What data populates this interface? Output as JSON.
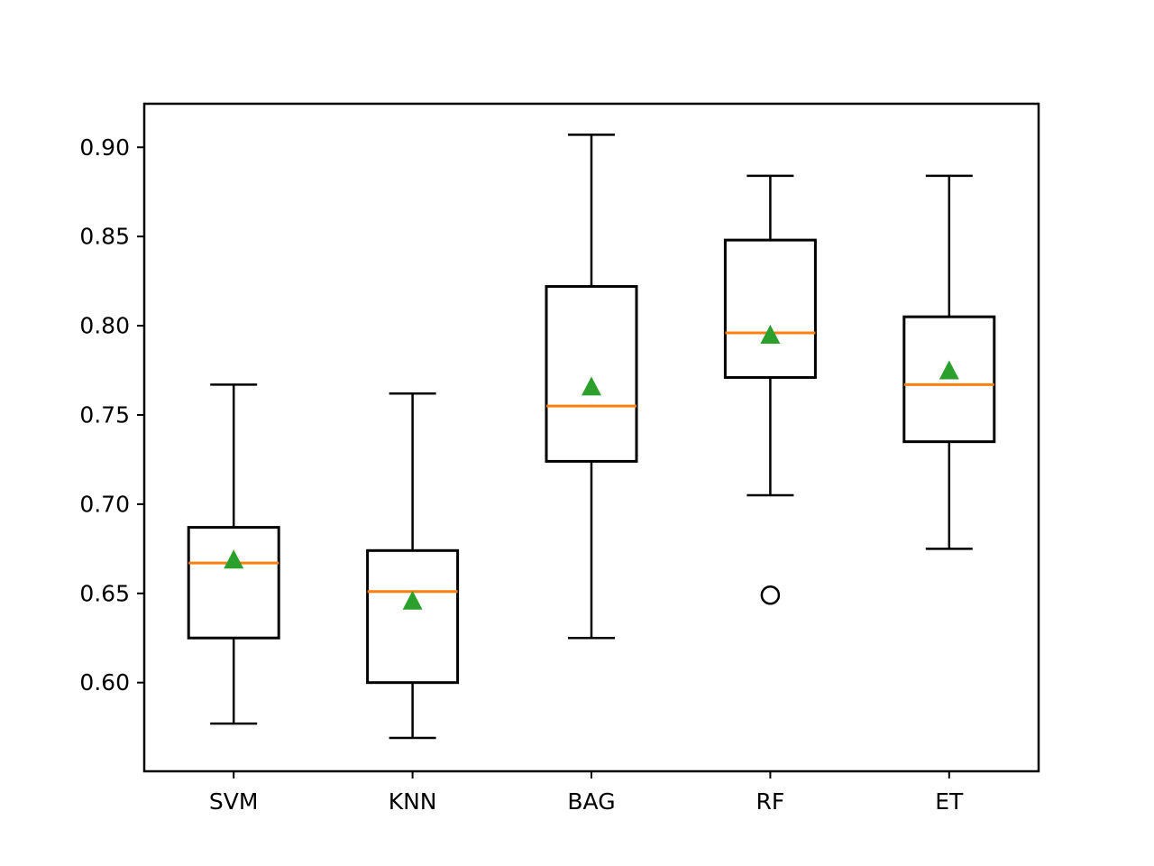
{
  "figure": {
    "background": "#ffffff",
    "frame_color": "#000000"
  },
  "chart_data": {
    "type": "boxplot",
    "title": "",
    "xlabel": "",
    "ylabel": "",
    "categories": [
      "SVM",
      "KNN",
      "BAG",
      "RF",
      "ET"
    ],
    "series": [
      {
        "name": "SVM",
        "whislo": 0.577,
        "q1": 0.625,
        "med": 0.667,
        "q3": 0.687,
        "whishi": 0.767,
        "mean": 0.669,
        "fliers": []
      },
      {
        "name": "KNN",
        "whislo": 0.569,
        "q1": 0.6,
        "med": 0.651,
        "q3": 0.674,
        "whishi": 0.762,
        "mean": 0.646,
        "fliers": []
      },
      {
        "name": "BAG",
        "whislo": 0.625,
        "q1": 0.724,
        "med": 0.755,
        "q3": 0.822,
        "whishi": 0.907,
        "mean": 0.766,
        "fliers": []
      },
      {
        "name": "RF",
        "whislo": 0.705,
        "q1": 0.771,
        "med": 0.796,
        "q3": 0.848,
        "whishi": 0.884,
        "mean": 0.795,
        "fliers": [
          0.649
        ]
      },
      {
        "name": "ET",
        "whislo": 0.675,
        "q1": 0.735,
        "med": 0.767,
        "q3": 0.805,
        "whishi": 0.884,
        "mean": 0.775,
        "fliers": []
      }
    ],
    "yticks": [
      0.6,
      0.65,
      0.7,
      0.75,
      0.8,
      0.85,
      0.9
    ],
    "ytick_labels": [
      "0.60",
      "0.65",
      "0.70",
      "0.75",
      "0.80",
      "0.85",
      "0.90"
    ],
    "ylim": [
      0.5503,
      0.9244
    ],
    "grid": false,
    "legend": null,
    "colors": {
      "median": "#ff7f0e",
      "mean": "#2ca02c",
      "line": "#000000",
      "box_fill": "#ffffff"
    }
  }
}
